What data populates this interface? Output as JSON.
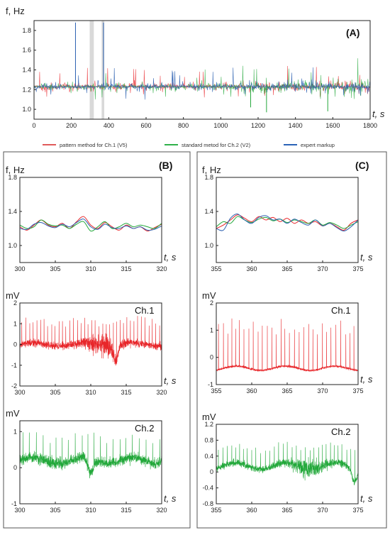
{
  "legend": {
    "items": [
      {
        "label": "pattern method for Ch.1 (V5)",
        "color": "#e05a5a"
      },
      {
        "label": "standard metod for Ch.2 (V2)",
        "color": "#2fb14a"
      },
      {
        "label": "expert markup",
        "color": "#2a63b7"
      }
    ]
  },
  "colors": {
    "red": "#e8262a",
    "green": "#22a83a",
    "blue": "#2a5fb0",
    "band": "#d9d9d9"
  },
  "chart_data": [
    {
      "id": "A",
      "type": "line",
      "title": "(A)",
      "ylabel": "f, Hz",
      "xlabel": "t, s",
      "xlim": [
        0,
        1800
      ],
      "ylim": [
        0.9,
        1.9
      ],
      "xticks": [
        0,
        200,
        400,
        600,
        800,
        1000,
        1200,
        1400,
        1600,
        1800
      ],
      "yticks": [
        1.0,
        1.2,
        1.4,
        1.6,
        1.8
      ],
      "highlight_bands": [
        [
          298,
          320
        ],
        [
          362,
          376
        ]
      ],
      "baseline": 1.23,
      "spikes": [
        {
          "series": "expert markup",
          "x": 222,
          "y": 1.88
        },
        {
          "series": "expert markup",
          "x": 372,
          "y": 1.88
        },
        {
          "series": "standard metod for Ch.2 (V2)",
          "x": 1160,
          "y": 1.02
        },
        {
          "series": "standard metod for Ch.2 (V2)",
          "x": 1245,
          "y": 0.97
        },
        {
          "series": "standard metod for Ch.2 (V2)",
          "x": 1573,
          "y": 0.98
        }
      ]
    },
    {
      "id": "B1",
      "type": "line",
      "title": "(B)",
      "ylabel": "f, Hz",
      "xlabel": "t, s",
      "xlim": [
        300,
        320
      ],
      "ylim": [
        0.8,
        1.8
      ],
      "xticks": [
        300,
        305,
        310,
        315,
        320
      ],
      "yticks": [
        1.0,
        1.4,
        1.8
      ],
      "series": [
        {
          "name": "pattern method for Ch.1 (V5)",
          "x": [
            300,
            301,
            302,
            303,
            304,
            305,
            306,
            307,
            308,
            309,
            310,
            311,
            312,
            313,
            314,
            315,
            316,
            317,
            318,
            319,
            320
          ],
          "y": [
            1.22,
            1.18,
            1.24,
            1.3,
            1.24,
            1.22,
            1.26,
            1.2,
            1.28,
            1.34,
            1.24,
            1.2,
            1.27,
            1.22,
            1.18,
            1.24,
            1.2,
            1.22,
            1.17,
            1.21,
            1.25
          ]
        },
        {
          "name": "standard metod for Ch.2 (V2)",
          "x": [
            300,
            301,
            302,
            303,
            304,
            305,
            306,
            307,
            308,
            309,
            310,
            311,
            312,
            313,
            314,
            315,
            316,
            317,
            318,
            319,
            320
          ],
          "y": [
            1.24,
            1.2,
            1.22,
            1.3,
            1.25,
            1.23,
            1.24,
            1.2,
            1.25,
            1.28,
            1.17,
            1.22,
            1.28,
            1.2,
            1.22,
            1.26,
            1.22,
            1.24,
            1.22,
            1.2,
            1.26
          ]
        },
        {
          "name": "expert markup",
          "x": [
            300,
            301,
            302,
            303,
            304,
            305,
            306,
            307,
            308,
            309,
            310,
            311,
            312,
            313,
            314,
            315,
            316,
            317,
            318,
            319,
            320
          ],
          "y": [
            1.2,
            1.19,
            1.25,
            1.27,
            1.23,
            1.21,
            1.25,
            1.22,
            1.27,
            1.31,
            1.22,
            1.19,
            1.25,
            1.21,
            1.2,
            1.23,
            1.2,
            1.22,
            1.18,
            1.19,
            1.23
          ]
        }
      ]
    },
    {
      "id": "B2",
      "type": "line",
      "ylabel": "mV",
      "xlabel": "t, s",
      "annotation": "Ch.1",
      "xlim": [
        300,
        320
      ],
      "ylim": [
        -2,
        2
      ],
      "xticks": [
        300,
        305,
        310,
        315,
        320
      ],
      "yticks": [
        -2,
        -1,
        0,
        1,
        2
      ],
      "signal": {
        "baseline": 0,
        "noise": 0.25,
        "spike_height": 1.2,
        "spike_period": 0.52,
        "burst_center": 311.5,
        "dip_at": 313.5
      }
    },
    {
      "id": "B3",
      "type": "line",
      "ylabel": "mV",
      "xlabel": "t, s",
      "annotation": "Ch.2",
      "xlim": [
        300,
        320
      ],
      "ylim": [
        -1,
        1.3
      ],
      "xticks": [
        300,
        305,
        310,
        315,
        320
      ],
      "yticks": [
        -1,
        0,
        1
      ],
      "signal": {
        "baseline": 0.2,
        "noise": 0.2,
        "spike_height": 0.7,
        "spike_period": 0.9,
        "dip_at": 310
      }
    },
    {
      "id": "C1",
      "type": "line",
      "title": "(C)",
      "ylabel": "f, Hz",
      "xlabel": "t, s",
      "xlim": [
        355,
        375
      ],
      "ylim": [
        0.8,
        1.8
      ],
      "xticks": [
        355,
        360,
        365,
        370,
        375
      ],
      "yticks": [
        1.0,
        1.4,
        1.8
      ],
      "series": [
        {
          "name": "pattern method for Ch.1 (V5)",
          "x": [
            355,
            356,
            357,
            358,
            359,
            360,
            361,
            362,
            363,
            364,
            365,
            366,
            367,
            368,
            369,
            370,
            371,
            372,
            373,
            374,
            375
          ],
          "y": [
            1.2,
            1.24,
            1.3,
            1.36,
            1.32,
            1.28,
            1.34,
            1.3,
            1.33,
            1.28,
            1.32,
            1.26,
            1.3,
            1.26,
            1.28,
            1.23,
            1.26,
            1.22,
            1.18,
            1.26,
            1.3
          ]
        },
        {
          "name": "standard metod for Ch.2 (V2)",
          "x": [
            355,
            356,
            357,
            358,
            359,
            360,
            361,
            362,
            363,
            364,
            365,
            366,
            367,
            368,
            369,
            370,
            371,
            372,
            373,
            374,
            375
          ],
          "y": [
            1.22,
            1.28,
            1.26,
            1.34,
            1.3,
            1.27,
            1.31,
            1.33,
            1.29,
            1.31,
            1.27,
            1.3,
            1.28,
            1.26,
            1.3,
            1.24,
            1.27,
            1.24,
            1.2,
            1.24,
            1.28
          ]
        },
        {
          "name": "expert markup",
          "x": [
            355,
            356,
            357,
            358,
            359,
            360,
            361,
            362,
            363,
            364,
            365,
            366,
            367,
            368,
            369,
            370,
            371,
            372,
            373,
            374,
            375
          ],
          "y": [
            1.2,
            1.18,
            1.32,
            1.37,
            1.3,
            1.26,
            1.33,
            1.35,
            1.3,
            1.31,
            1.26,
            1.31,
            1.27,
            1.24,
            1.3,
            1.23,
            1.26,
            1.21,
            1.17,
            1.22,
            1.3
          ]
        }
      ]
    },
    {
      "id": "C2",
      "type": "line",
      "ylabel": "mV",
      "xlabel": "t, s",
      "annotation": "Ch.1",
      "xlim": [
        355,
        375
      ],
      "ylim": [
        -1,
        2
      ],
      "xticks": [
        355,
        360,
        365,
        370,
        375
      ],
      "yticks": [
        -1,
        0,
        1,
        2
      ],
      "signal": {
        "baseline": -0.4,
        "noise": 0.06,
        "spike_height": 1.6,
        "spike_period": 0.62
      }
    },
    {
      "id": "C3",
      "type": "line",
      "ylabel": "mV",
      "xlabel": "t, s",
      "annotation": "Ch.2",
      "xlim": [
        355,
        375
      ],
      "ylim": [
        -0.8,
        1.2
      ],
      "xticks": [
        355,
        360,
        365,
        370,
        375
      ],
      "yticks": [
        -0.8,
        -0.4,
        0,
        0.4,
        0.8,
        1.2
      ],
      "signal": {
        "baseline": 0.15,
        "noise": 0.12,
        "spike_height": 0.5,
        "spike_period": 0.6,
        "burst_center": 368,
        "dip_at": 374.5
      }
    }
  ]
}
